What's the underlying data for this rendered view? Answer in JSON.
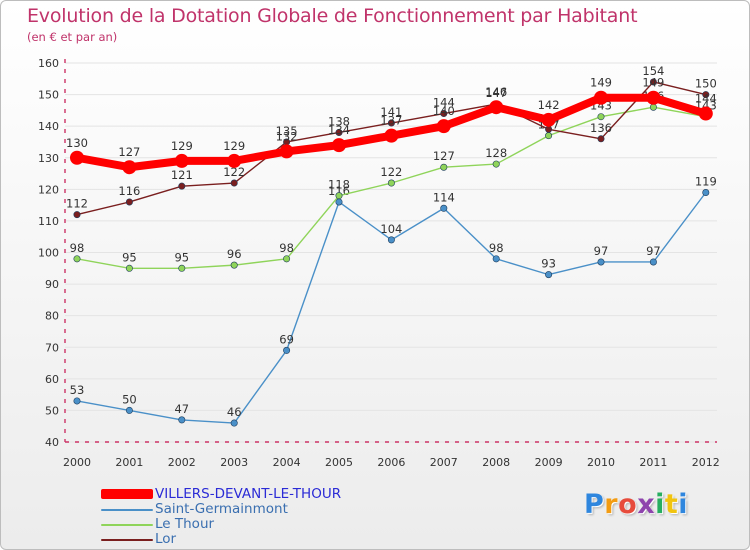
{
  "title": "Evolution de la Dotation Globale de Fonctionnement par Habitant",
  "subtitle": "(en € et par an)",
  "brand": {
    "name": "Proxiti",
    "letters": [
      "P",
      "r",
      "o",
      "x",
      "i",
      "t",
      "i"
    ],
    "colors": [
      "#2e86de",
      "#f39c12",
      "#e74c3c",
      "#8e44ad",
      "#27ae60",
      "#f1c40f",
      "#2e86de"
    ]
  },
  "chart_data": {
    "type": "line",
    "title": "Evolution de la Dotation Globale de Fonctionnement par Habitant",
    "subtitle": "(en € et par an)",
    "xlabel": "",
    "ylabel": "",
    "categories": [
      "2000",
      "2001",
      "2002",
      "2003",
      "2004",
      "2005",
      "2006",
      "2007",
      "2008",
      "2009",
      "2010",
      "2011",
      "2012"
    ],
    "yticks": [
      40,
      50,
      60,
      70,
      80,
      90,
      100,
      110,
      120,
      130,
      140,
      150,
      160
    ],
    "ylim": [
      40,
      160
    ],
    "grid": "horizontal",
    "legend_position": "bottom-left",
    "series": [
      {
        "name": "Saint-Germainmont",
        "color": "#4a90c8",
        "values": [
          53,
          50,
          47,
          46,
          69,
          116,
          104,
          114,
          98,
          93,
          97,
          97,
          119
        ],
        "labels": [
          "53",
          "50",
          "47",
          "46",
          "69",
          "116",
          "104",
          "114",
          "98",
          "93",
          "97",
          "97",
          "119"
        ]
      },
      {
        "name": "Le Thour",
        "color": "#8fd45a",
        "values": [
          98,
          95,
          95,
          96,
          98,
          118,
          122,
          127,
          128,
          137,
          143,
          146,
          143
        ],
        "labels": [
          "98",
          "95",
          "95",
          "96",
          "98",
          "118",
          "122",
          "127",
          "128",
          "137",
          "143",
          "146",
          "143"
        ]
      },
      {
        "name": "Lor",
        "color": "#7a1f1f",
        "values": [
          112,
          116,
          121,
          122,
          135,
          138,
          141,
          144,
          147,
          139,
          136,
          154,
          150
        ],
        "labels": [
          "112",
          "116",
          "121",
          "122",
          "135",
          "138",
          "141",
          "144",
          "147",
          "139",
          "136",
          "154",
          "150"
        ]
      },
      {
        "name": "VILLERS-DEVANT-LE-THOUR",
        "color": "#ff0000",
        "values": [
          130,
          127,
          129,
          129,
          132,
          134,
          137,
          140,
          146,
          142,
          149,
          149,
          144
        ],
        "labels": [
          "130",
          "127",
          "129",
          "129",
          "132",
          "134",
          "137",
          "140",
          "146",
          "142",
          "149",
          "149",
          "144"
        ]
      }
    ]
  }
}
